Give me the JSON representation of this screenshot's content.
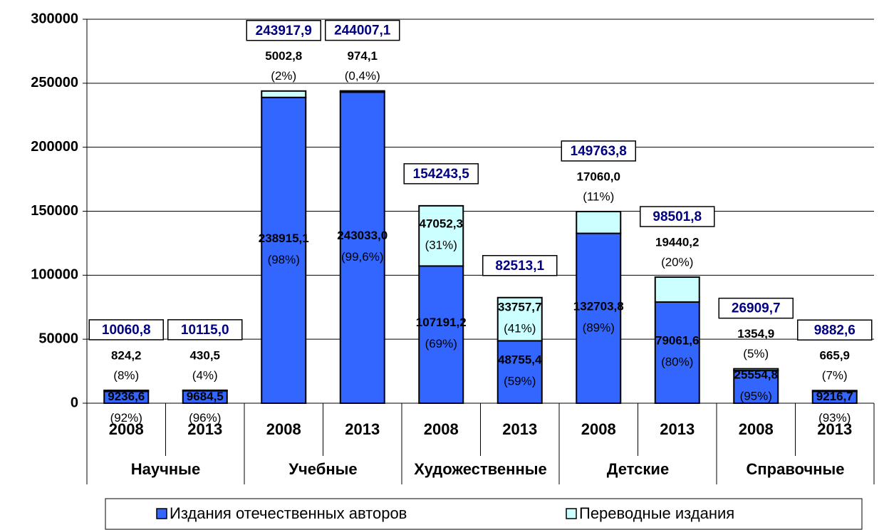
{
  "chart_data": {
    "type": "stacked_bar",
    "categories": [
      "2008",
      "2013",
      "2008",
      "2013",
      "2008",
      "2013",
      "2008",
      "2013",
      "2008",
      "2013"
    ],
    "groups": [
      "Научные",
      "Учебные",
      "Художественные",
      "Детские",
      "Справочные"
    ],
    "series": [
      {
        "name": "Издания отечественных авторов",
        "color": "#3366ff",
        "values": [
          9236.6,
          9684.5,
          238915.1,
          243033.0,
          107191.2,
          48755.4,
          132703.8,
          79061.6,
          25554.8,
          9216.7
        ],
        "value_labels": [
          "9236,6",
          "9684,5",
          "238915,1",
          "243033,0",
          "107191,2",
          "48755,4",
          "132703,8",
          "79061,6",
          "25554,8",
          "9216,7"
        ],
        "percent_labels": [
          "(92%)",
          "(96%)",
          "(98%)",
          "(99,6%)",
          "(69%)",
          "(59%)",
          "(89%)",
          "(80%)",
          "(95%)",
          "(93%)"
        ]
      },
      {
        "name": "Переводные издания",
        "color": "#ccffff",
        "values": [
          824.2,
          430.5,
          5002.8,
          974.1,
          47052.3,
          33757.7,
          17060.0,
          19440.2,
          1354.9,
          665.9
        ],
        "value_labels": [
          "824,2",
          "430,5",
          "5002,8",
          "974,1",
          "47052,3",
          "33757,7",
          "17060,0",
          "19440,2",
          "1354,9",
          "665,9"
        ],
        "percent_labels": [
          "(8%)",
          "(4%)",
          "(2%)",
          "(0,4%)",
          "(31%)",
          "(41%)",
          "(11%)",
          "(20%)",
          "(5%)",
          "(7%)"
        ]
      }
    ],
    "totals": [
      10060.8,
      10115.0,
      243917.9,
      244007.1,
      154243.5,
      82513.1,
      149763.8,
      98501.8,
      26909.7,
      9882.6
    ],
    "total_labels": [
      "10060,8",
      "10115,0",
      "243917,9",
      "244007,1",
      "154243,5",
      "82513,1",
      "149763,8",
      "98501,8",
      "26909,7",
      "9882,6"
    ],
    "ylim": [
      0,
      300000
    ],
    "yticks": [
      0,
      50000,
      100000,
      150000,
      200000,
      250000,
      300000
    ],
    "grid": true
  }
}
